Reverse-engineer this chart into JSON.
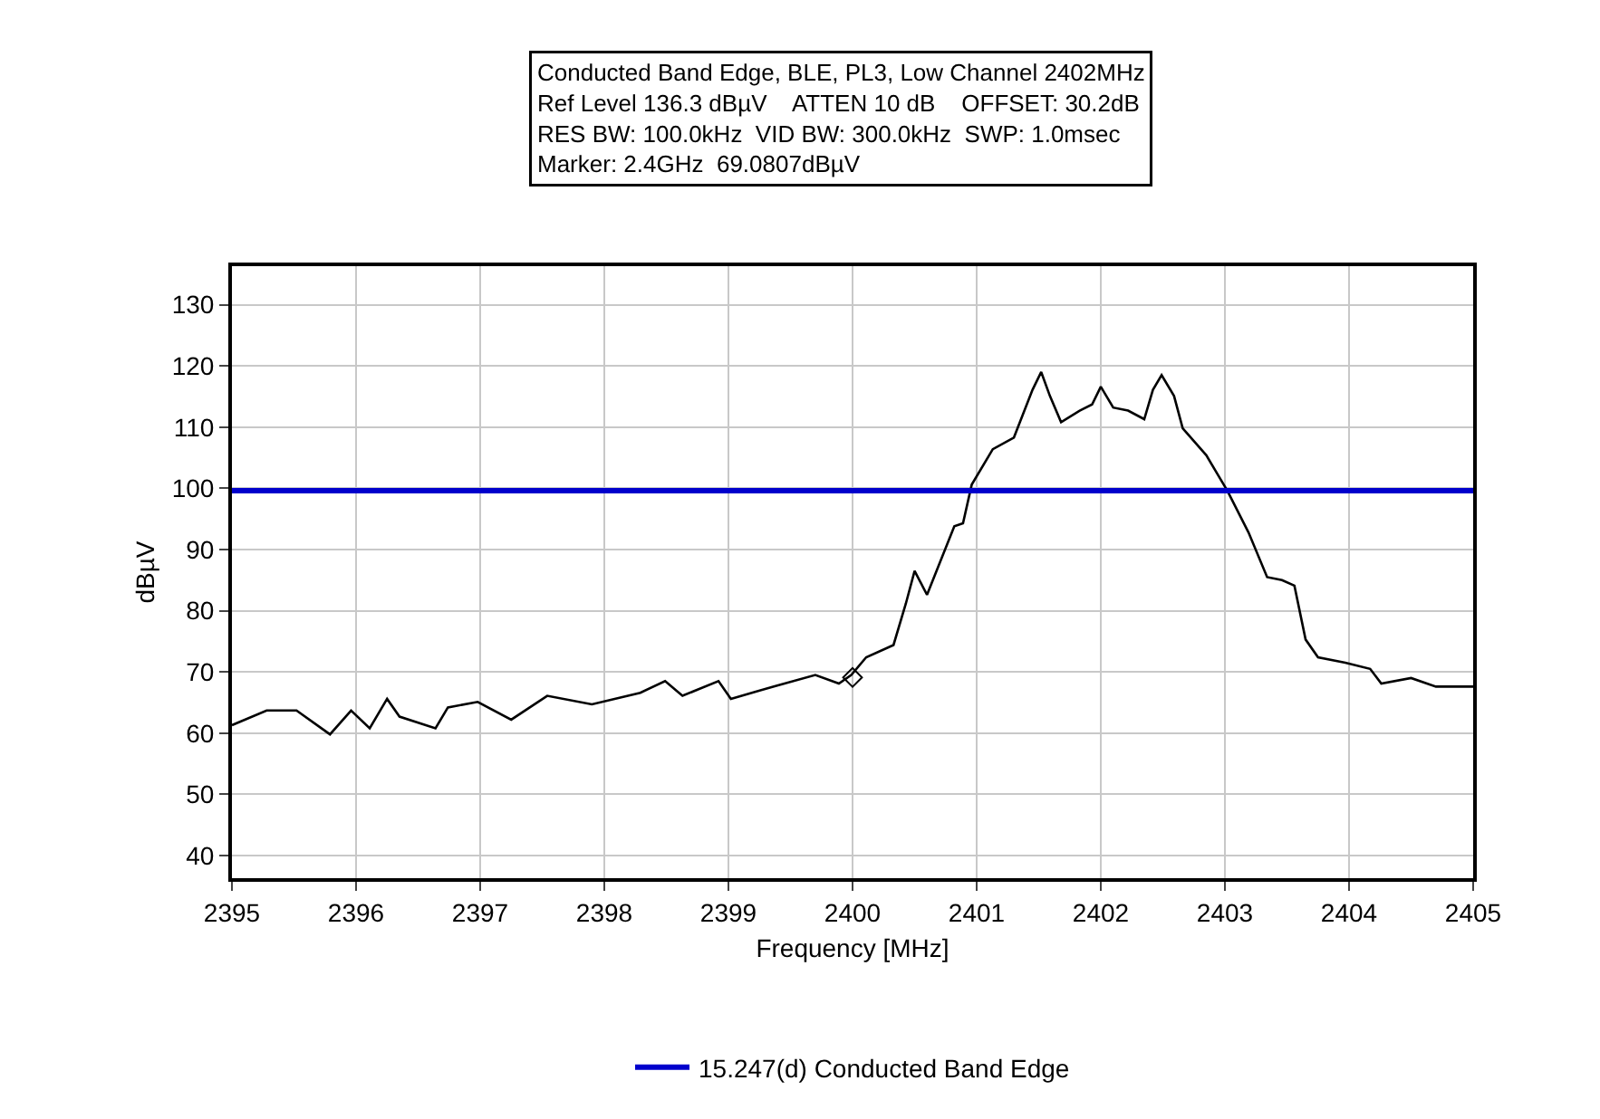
{
  "chart_data": {
    "type": "line",
    "title": "Conducted Band Edge, BLE, PL3, Low Channel 2402MHz",
    "annotations": [
      "Ref Level 136.3 dBµV    ATTEN 10 dB    OFFSET: 30.2dB",
      "RES BW: 100.0kHz  VID BW: 300.0kHz  SWP: 1.0msec",
      "Marker: 2.4GHz  69.0807dBµV"
    ],
    "xlabel": "Frequency [MHz]",
    "ylabel": "dBµV",
    "series": [
      {
        "color": "#000000",
        "x": [
          2395,
          2395.28,
          2395.52,
          2395.79,
          2395.96,
          2396.11,
          2396.25,
          2396.35,
          2396.64,
          2396.74,
          2396.98,
          2397.25,
          2397.54,
          2397.9,
          2398.29,
          2398.49,
          2398.63,
          2398.92,
          2399.02,
          2399.36,
          2399.7,
          2399.89,
          2399.99,
          2400.11,
          2400.33,
          2400.43,
          2400.5,
          2400.6,
          2400.82,
          2400.89,
          2400.96,
          2401.13,
          2401.3,
          2401.45,
          2401.52,
          2401.59,
          2401.68,
          2401.83,
          2401.93,
          2402,
          2402.1,
          2402.22,
          2402.35,
          2402.42,
          2402.49,
          2402.59,
          2402.66,
          2402.85,
          2403.02,
          2403.19,
          2403.34,
          2403.46,
          2403.56,
          2403.65,
          2403.75,
          2403.97,
          2404.17,
          2404.26,
          2404.5,
          2404.7,
          2404.89,
          2405
        ],
        "values": [
          61.3,
          63.7,
          63.7,
          59.8,
          63.7,
          60.8,
          65.6,
          62.7,
          60.8,
          64.2,
          65.1,
          62.2,
          66.1,
          64.7,
          66.6,
          68.5,
          66.1,
          68.5,
          65.6,
          67.6,
          69.5,
          68.1,
          69.5,
          72.4,
          74.4,
          81.2,
          86.5,
          82.6,
          93.8,
          94.3,
          100.6,
          106.4,
          108.3,
          116.1,
          119,
          115.1,
          110.8,
          112.7,
          113.7,
          116.6,
          113.2,
          112.7,
          111.3,
          116.1,
          118.5,
          115.1,
          109.8,
          105.4,
          99.6,
          92.8,
          85.5,
          85,
          84.1,
          75.3,
          72.4,
          71.5,
          70.5,
          68.1,
          69,
          67.6,
          67.6,
          67.6
        ]
      },
      {
        "type": "scatter",
        "marker": "diamond",
        "color": "#000000",
        "x": [
          2400
        ],
        "values": [
          69.1
        ]
      }
    ],
    "ref_lines": [
      {
        "axis": "y",
        "value": 99.6,
        "label": "15.247(d) Conducted Band Edge",
        "color": "#0000cc"
      }
    ],
    "xlim": [
      2395,
      2405
    ],
    "xticks": [
      2395,
      2396,
      2397,
      2398,
      2399,
      2400,
      2401,
      2402,
      2403,
      2404,
      2405
    ],
    "ylim": [
      36.3,
      136.3
    ],
    "yticks": [
      40,
      50,
      60,
      70,
      80,
      90,
      100,
      110,
      120,
      130
    ],
    "grid": true,
    "legend": "bottom"
  }
}
